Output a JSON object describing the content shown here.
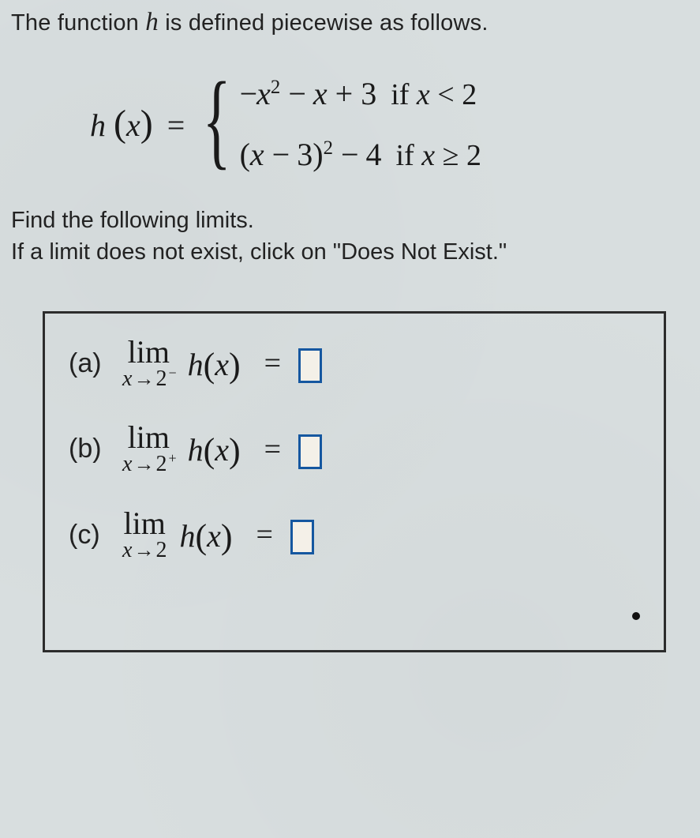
{
  "intro": {
    "pre": "The function ",
    "var": "h",
    "post": " is defined piecewise as follows."
  },
  "piecewise": {
    "lhs_fn": "h",
    "lhs_var": "x",
    "cases": [
      {
        "expr": "−x² − x + 3",
        "cond_word": "if",
        "cond": "x < 2"
      },
      {
        "expr": "(x − 3)² − 4",
        "cond_word": "if",
        "cond": "x ≥ 2"
      }
    ]
  },
  "prompt": {
    "line1": "Find the following limits.",
    "line2": "If a limit does not exist, click on \"Does Not Exist.\""
  },
  "parts": [
    {
      "label": "(a)",
      "lim": "lim",
      "subvar": "x",
      "arrow": "→",
      "target": "2",
      "side": "−",
      "fn": "h",
      "arg": "x",
      "eq": "="
    },
    {
      "label": "(b)",
      "lim": "lim",
      "subvar": "x",
      "arrow": "→",
      "target": "2",
      "side": "+",
      "fn": "h",
      "arg": "x",
      "eq": "="
    },
    {
      "label": "(c)",
      "lim": "lim",
      "subvar": "x",
      "arrow": "→",
      "target": "2",
      "side": "",
      "fn": "h",
      "arg": "x",
      "eq": "="
    }
  ],
  "colors": {
    "background": "#d8dedf",
    "text": "#1a1a1a",
    "box_border": "#2c2c2c",
    "input_border": "#1557a0",
    "input_fill": "#f4f0e8"
  }
}
